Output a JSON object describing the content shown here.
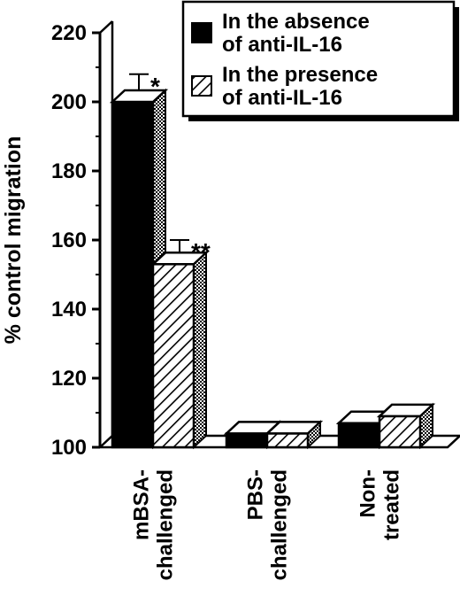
{
  "chart_data": {
    "type": "bar",
    "style": "3d",
    "ylabel": "% control migration",
    "ylim": [
      100,
      220
    ],
    "yticks": [
      100,
      120,
      140,
      160,
      180,
      200,
      220
    ],
    "categories": [
      [
        "mBSA-",
        "challenged"
      ],
      [
        "PBS-",
        "challenged"
      ],
      [
        "Non-",
        "treated"
      ]
    ],
    "series": [
      {
        "name": [
          "In the absence",
          "of anti-IL-16"
        ],
        "pattern": "solid",
        "values": [
          200,
          104,
          107
        ],
        "errors": [
          8,
          3,
          3
        ]
      },
      {
        "name": [
          "In the presence",
          "of anti-IL-16"
        ],
        "pattern": "hatched",
        "values": [
          153,
          104,
          109
        ],
        "errors": [
          7,
          3,
          2
        ]
      }
    ],
    "annotations": [
      {
        "text": "*",
        "category": 0,
        "series": 0
      },
      {
        "text": "**",
        "category": 0,
        "series": 1
      }
    ],
    "legend_position": "top-right",
    "grid": false
  }
}
